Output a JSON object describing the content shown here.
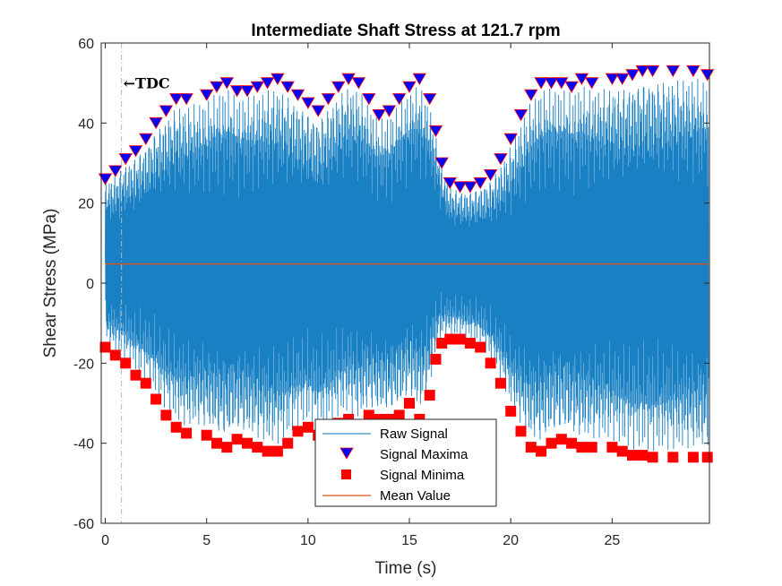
{
  "chart_data": {
    "type": "line",
    "title": "Intermediate Shaft Stress at 121.7 rpm",
    "xlabel": "Time (s)",
    "ylabel": "Shear Stress (MPa)",
    "xlim": [
      -0.2,
      29.8
    ],
    "ylim": [
      -60,
      60
    ],
    "xticks": [
      "0",
      "5",
      "10",
      "15",
      "20",
      "25"
    ],
    "xtick_values": [
      0,
      5,
      10,
      15,
      20,
      25
    ],
    "yticks": [
      "-60",
      "-40",
      "-20",
      "0",
      "20",
      "40",
      "60"
    ],
    "ytick_values": [
      -60,
      -40,
      -20,
      0,
      20,
      40,
      60
    ],
    "grid": false,
    "legend_position": "bottom-center",
    "annotation": {
      "text": "←TDC",
      "x": 0.8
    },
    "series": [
      {
        "name": "Raw Signal",
        "color": "#0072BD"
      },
      {
        "name": "Signal Maxima",
        "color": "#0000FF",
        "edge_color": "#FF0000",
        "marker": "triangle-down",
        "x": [
          0,
          0.5,
          1,
          1.5,
          2,
          2.5,
          3,
          3.5,
          4,
          5,
          5.5,
          6,
          6.5,
          7,
          7.5,
          8,
          8.5,
          9,
          9.5,
          10,
          10.5,
          11,
          11.5,
          12,
          12.5,
          13,
          13.5,
          14,
          14.5,
          15,
          15.5,
          16,
          16.3,
          16.6,
          17,
          17.5,
          18,
          18.5,
          19,
          19.5,
          20,
          20.5,
          21,
          21.5,
          22,
          22.5,
          23,
          23.5,
          24,
          25,
          25.5,
          26,
          26.5,
          27,
          28,
          29,
          29.7
        ],
        "y": [
          26,
          28,
          31,
          33,
          36,
          40,
          43,
          46,
          46,
          47,
          49,
          50,
          48,
          48,
          49,
          50,
          51,
          49,
          47,
          45,
          43,
          46,
          49,
          51,
          50,
          46,
          42,
          43,
          46,
          49,
          51,
          46,
          38,
          30,
          25,
          24,
          24,
          25,
          27,
          31,
          36,
          42,
          47,
          50,
          50,
          50,
          49,
          51,
          50,
          51,
          51,
          52,
          53,
          53,
          53,
          53,
          52
        ]
      },
      {
        "name": "Signal Minima",
        "color": "#FF0000",
        "marker": "square",
        "x": [
          0,
          0.5,
          1,
          1.5,
          2,
          2.5,
          3,
          3.5,
          4,
          5,
          5.5,
          6,
          6.5,
          7,
          7.5,
          8,
          8.5,
          9,
          9.5,
          10,
          10.5,
          11,
          11.5,
          12,
          12.5,
          13,
          13.5,
          14,
          14.5,
          15,
          15.5,
          16,
          16.3,
          16.6,
          17,
          17.5,
          18,
          18.5,
          19,
          19.5,
          20,
          20.5,
          21,
          21.5,
          22,
          22.5,
          23,
          23.5,
          24,
          25,
          25.5,
          26,
          26.5,
          27,
          28,
          29,
          29.7
        ],
        "y": [
          -16,
          -18,
          -20,
          -23,
          -25,
          -29,
          -33,
          -36,
          -37.5,
          -38,
          -40,
          -41,
          -39,
          -40,
          -41,
          -42,
          -42,
          -40,
          -37,
          -36,
          -38,
          -37,
          -35,
          -34,
          -36,
          -33,
          -34,
          -34,
          -33,
          -30,
          -34,
          -28,
          -19,
          -15,
          -14,
          -14,
          -15,
          -16,
          -20,
          -25,
          -32,
          -37,
          -41,
          -42,
          -40,
          -39,
          -40,
          -41,
          -41,
          -41,
          -42,
          -43,
          -43,
          -43.5,
          -43.5,
          -43.5,
          -43.5
        ]
      },
      {
        "name": "Mean Value",
        "color": "#D95319",
        "value": 4.8
      }
    ]
  }
}
